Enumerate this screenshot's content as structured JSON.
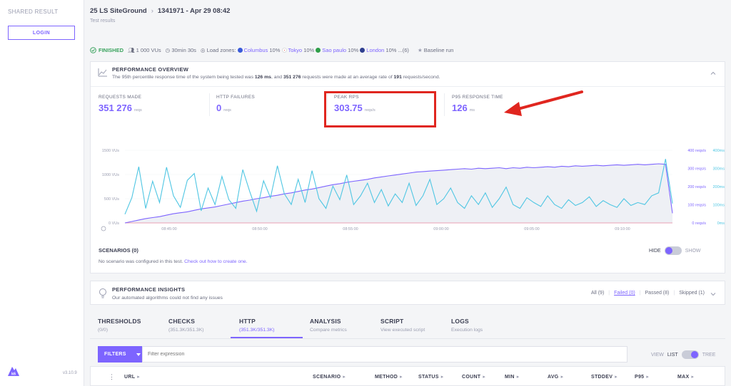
{
  "sidebar": {
    "shared_label": "SHARED RESULT",
    "login_label": "LOGIN",
    "logo_icon": "k6-logo-icon",
    "version": "v3.10.9"
  },
  "header": {
    "project": "25 LS SiteGround",
    "test_run": "1341971 - Apr 29 08:42",
    "subtitle": "Test results"
  },
  "status": {
    "finished": "FINISHED",
    "vus": "1 000 VUs",
    "duration": "30min 30s",
    "load_zones_label": "Load zones:",
    "zones": [
      {
        "name": "Columbus",
        "pct": "10%",
        "flag_color": "#3a5bd9"
      },
      {
        "name": "Tokyo",
        "pct": "10%",
        "flag_color": "#e0261f"
      },
      {
        "name": "Sao paulo",
        "pct": "10%",
        "flag_color": "#2e9e48"
      },
      {
        "name": "London",
        "pct": "10%",
        "flag_color": "#2f3f8f"
      }
    ],
    "more": "...(6)",
    "baseline": "Baseline run"
  },
  "overview": {
    "title": "PERFORMANCE OVERVIEW",
    "desc_pre": "The 95th percentile response time of the system being tested was ",
    "desc_p95": "126 ms",
    "desc_mid": ", and ",
    "desc_reqs": "351 276",
    "desc_mid2": " requests were made at an average rate of ",
    "desc_rate": "191",
    "desc_post": " requests/second.",
    "metrics": [
      {
        "label": "REQUESTS MADE",
        "value": "351 276",
        "unit": "reqs"
      },
      {
        "label": "HTTP FAILURES",
        "value": "0",
        "unit": "reqs"
      },
      {
        "label": "PEAK RPS",
        "value": "303.75",
        "unit": "reqs/s"
      },
      {
        "label": "P95 RESPONSE TIME",
        "value": "126",
        "unit": "ms"
      }
    ]
  },
  "chart_data": {
    "type": "line",
    "left_axis": {
      "ticks": [
        "1500 VUs",
        "1000 VUs",
        "500 VUs",
        "0 VUs"
      ],
      "range": [
        0,
        1500
      ]
    },
    "right_axis_rps": {
      "ticks": [
        "400 reqs/s",
        "300 reqs/s",
        "200 reqs/s",
        "100 reqs/s",
        "0 reqs/s"
      ],
      "range": [
        0,
        400
      ]
    },
    "right_axis_ms": {
      "ticks": [
        "400ms",
        "300ms",
        "200ms",
        "100ms",
        "0ms"
      ],
      "range": [
        0,
        400
      ]
    },
    "x_ticks": [
      "08:45:00",
      "08:50:00",
      "08:55:00",
      "09:00:00",
      "09:05:00",
      "09:10:00"
    ],
    "series": [
      {
        "color": "#7d64ff",
        "values": [
          0,
          30,
          60,
          90,
          110,
          130,
          160,
          190,
          210,
          230,
          260,
          290,
          310,
          330,
          360,
          390,
          420,
          450,
          470,
          500,
          520,
          550,
          570,
          600,
          620,
          650,
          680,
          700,
          730,
          760,
          790,
          810,
          840,
          860,
          880,
          900,
          930,
          950,
          970,
          990,
          1010,
          1030,
          1050,
          1060,
          1070,
          1080,
          1090,
          1100,
          1110,
          1120,
          1110,
          1130,
          1120,
          1130,
          1140,
          1120,
          1140,
          1130,
          1150,
          1140,
          1150,
          1160,
          1150,
          1170,
          1160,
          1180,
          1170,
          1180,
          1190,
          1180,
          1190,
          1200,
          1190,
          1200,
          1210,
          1200,
          1210,
          1220,
          1210,
          200
        ]
      },
      {
        "color": "#4fc6e3",
        "values": [
          180,
          520,
          1160,
          300,
          860,
          420,
          1150,
          560,
          320,
          880,
          1020,
          250,
          720,
          380,
          960,
          480,
          300,
          1100,
          650,
          240,
          870,
          520,
          1180,
          600,
          380,
          900,
          420,
          1080,
          500,
          300,
          760,
          480,
          990,
          380,
          560,
          820,
          420,
          690,
          350,
          600,
          420,
          820,
          360,
          560,
          900,
          380,
          500,
          720,
          420,
          300,
          560,
          380,
          620,
          320,
          500,
          740,
          380,
          300,
          520,
          420,
          340,
          560,
          380,
          300,
          480,
          360,
          420,
          540,
          340,
          460,
          380,
          320,
          500,
          360,
          420,
          380,
          560,
          620,
          1320,
          400
        ]
      },
      {
        "color": "#e8a0b4",
        "values": [
          0,
          0,
          0,
          0,
          0,
          0,
          0,
          0,
          0,
          0,
          0,
          0,
          0,
          0,
          0,
          0,
          0,
          0,
          0,
          0
        ]
      }
    ]
  },
  "scenarios": {
    "title": "SCENARIOS (0)",
    "desc": "No scenario was configured in this test.",
    "link": "Check out how to create one.",
    "hide": "HIDE",
    "show": "SHOW"
  },
  "insights": {
    "title": "PERFORMANCE INSIGHTS",
    "desc": "Our automated algorithms could not find any issues",
    "filters": [
      "All (9)",
      "Failed (0)",
      "Passed (8)",
      "Skipped (1)"
    ]
  },
  "tabs": [
    {
      "label": "THRESHOLDS",
      "sub": "(0/0)"
    },
    {
      "label": "CHECKS",
      "sub": "(351.3K/351.3K)"
    },
    {
      "label": "HTTP",
      "sub": "(351.3K/351.3K)"
    },
    {
      "label": "ANALYSIS",
      "sub": "Compare metrics"
    },
    {
      "label": "SCRIPT",
      "sub": "View executed script"
    },
    {
      "label": "LOGS",
      "sub": "Execution logs"
    }
  ],
  "filters": {
    "button": "FILTERS",
    "placeholder": "Filter expression",
    "view": "VIEW",
    "list": "LIST",
    "tree": "TREE"
  },
  "table": {
    "columns": [
      "URL",
      "SCENARIO",
      "METHOD",
      "STATUS",
      "COUNT",
      "MIN",
      "AVG",
      "STDDEV",
      "P95",
      "MAX"
    ],
    "sort_glyph": "▸"
  }
}
